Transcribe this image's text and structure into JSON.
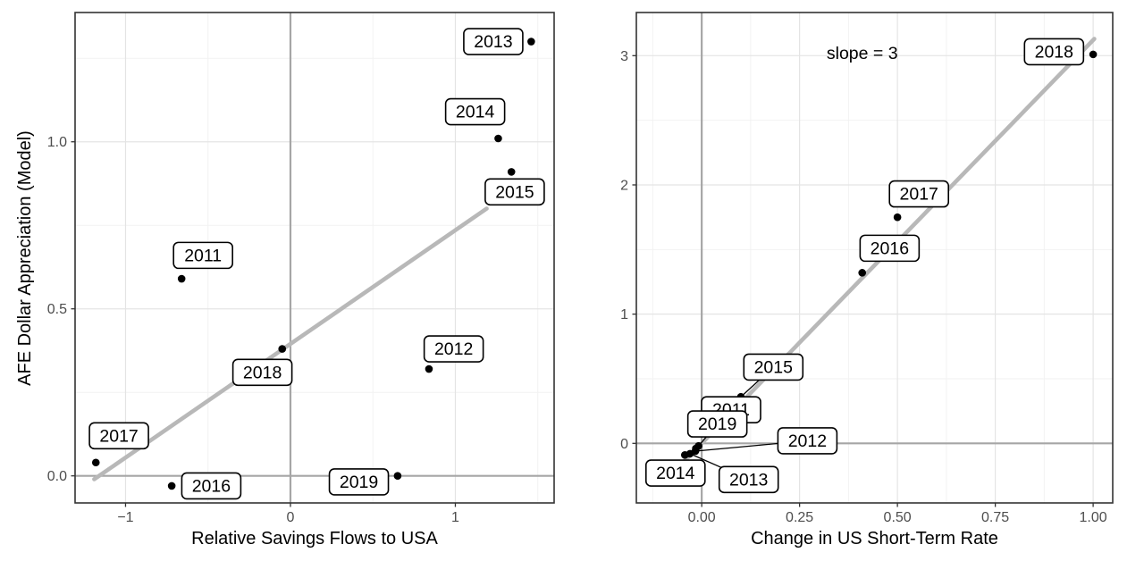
{
  "colors": {
    "background": "#ffffff",
    "point": "#000000",
    "trend_line": "#b8b8b8",
    "grid_major": "#e4e4e4",
    "grid_minor": "#f2f2f2",
    "zero_line": "#a6a6a6",
    "panel_border": "#333333",
    "label_box_fill": "#ffffff",
    "label_box_border": "#000000",
    "tick_text": "#4d4d4d",
    "title_text": "#000000"
  },
  "chart_data": [
    {
      "type": "scatter",
      "title": "",
      "xlabel": "Relative Savings Flows to USA",
      "ylabel": "AFE Dollar Appreciation (Model)",
      "xlim": [
        -1.306,
        1.599
      ],
      "ylim": [
        -0.081,
        1.387
      ],
      "grid": true,
      "xticks": {
        "values": [
          -1,
          0,
          1
        ],
        "labels": [
          "−1",
          "0",
          "1"
        ]
      },
      "yticks": {
        "values": [
          0,
          0.5,
          1
        ],
        "labels": [
          "0.0",
          "0.5",
          "1.0"
        ]
      },
      "xminor": [
        -0.5,
        0.5,
        1.5
      ],
      "yminor": [
        0.25,
        0.75,
        1.25
      ],
      "zero_hline": 0,
      "zero_vline": 0,
      "trend_line": {
        "x1": -1.19,
        "y1": -0.01,
        "x2": 1.19,
        "y2": 0.8
      },
      "annotation": null,
      "points": [
        {
          "year": "2011",
          "x": -0.66,
          "y": 0.59,
          "lx": -0.53,
          "ly": 0.66,
          "leader": false
        },
        {
          "year": "2012",
          "x": 0.84,
          "y": 0.32,
          "lx": 0.99,
          "ly": 0.38,
          "leader": false
        },
        {
          "year": "2013",
          "x": 1.46,
          "y": 1.3,
          "lx": 1.23,
          "ly": 1.3,
          "leader": false
        },
        {
          "year": "2014",
          "x": 1.26,
          "y": 1.01,
          "lx": 1.12,
          "ly": 1.09,
          "leader": false
        },
        {
          "year": "2015",
          "x": 1.34,
          "y": 0.91,
          "lx": 1.36,
          "ly": 0.85,
          "leader": false
        },
        {
          "year": "2016",
          "x": -0.72,
          "y": -0.03,
          "lx": -0.48,
          "ly": -0.03,
          "leader": false
        },
        {
          "year": "2017",
          "x": -1.18,
          "y": 0.04,
          "lx": -1.04,
          "ly": 0.12,
          "leader": false
        },
        {
          "year": "2018",
          "x": -0.05,
          "y": 0.38,
          "lx": -0.17,
          "ly": 0.31,
          "leader": false
        },
        {
          "year": "2019",
          "x": 0.65,
          "y": 0.0,
          "lx": 0.415,
          "ly": -0.018,
          "leader": false
        }
      ]
    },
    {
      "type": "scatter",
      "title": "",
      "xlabel": "Change in US Short-Term Rate",
      "ylabel": "",
      "xlim": [
        -0.167,
        1.05
      ],
      "ylim": [
        -0.461,
        3.334
      ],
      "grid": true,
      "xticks": {
        "values": [
          0,
          0.25,
          0.5,
          0.75,
          1.0
        ],
        "labels": [
          "0.00",
          "0.25",
          "0.50",
          "0.75",
          "1.00"
        ]
      },
      "yticks": {
        "values": [
          0,
          1,
          2,
          3
        ],
        "labels": [
          "0",
          "1",
          "2",
          "3"
        ]
      },
      "xminor": [
        -0.125,
        0.125,
        0.375,
        0.625,
        0.875
      ],
      "yminor": [
        0.5,
        1.5,
        2.5
      ],
      "zero_hline": 0,
      "zero_vline": 0,
      "trend_line": {
        "x1": -0.048,
        "y1": -0.15,
        "x2": 1.003,
        "y2": 3.13
      },
      "annotation": {
        "text": "slope = 3",
        "x": 0.41,
        "y": 3.02
      },
      "points": [
        {
          "year": "2015",
          "x": 0.1,
          "y": 0.36,
          "lx": 0.183,
          "ly": 0.59,
          "leader": true
        },
        {
          "year": "2011",
          "x": -0.015,
          "y": -0.04,
          "lx": 0.075,
          "ly": 0.26,
          "leader": false
        },
        {
          "year": "2019",
          "x": -0.008,
          "y": -0.02,
          "lx": 0.04,
          "ly": 0.15,
          "leader": true
        },
        {
          "year": "2012",
          "x": -0.016,
          "y": -0.06,
          "lx": 0.27,
          "ly": 0.02,
          "leader": true
        },
        {
          "year": "2014",
          "x": -0.043,
          "y": -0.09,
          "lx": -0.067,
          "ly": -0.23,
          "leader": false
        },
        {
          "year": "2013",
          "x": -0.03,
          "y": -0.08,
          "lx": 0.12,
          "ly": -0.28,
          "leader": true
        },
        {
          "year": "2016",
          "x": 0.41,
          "y": 1.32,
          "lx": 0.48,
          "ly": 1.51,
          "leader": false
        },
        {
          "year": "2017",
          "x": 0.5,
          "y": 1.75,
          "lx": 0.555,
          "ly": 1.93,
          "leader": false
        },
        {
          "year": "2018",
          "x": 1.0,
          "y": 3.01,
          "lx": 0.9,
          "ly": 3.03,
          "leader": false
        }
      ]
    }
  ]
}
